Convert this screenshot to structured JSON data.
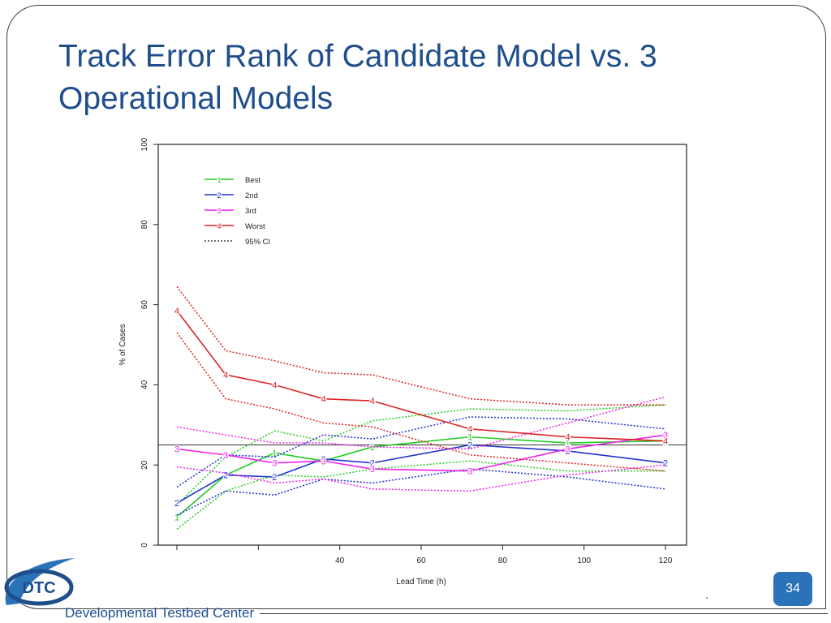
{
  "slide": {
    "title": "Track Error Rank of Candidate Model vs. 3 Operational Models",
    "page_number": "34",
    "org_name": "Developmental Testbed Center",
    "logo_text": "DTC"
  },
  "colors": {
    "best": "#22cc22",
    "second": "#2233cc",
    "third": "#ee22ee",
    "worst": "#dd2222",
    "ci": "#222222",
    "title": "#1f4e8c",
    "badge": "#2b73b8"
  },
  "chart_data": {
    "type": "line",
    "xlabel": "Lead Time (h)",
    "ylabel": "% of Cases",
    "xlim": [
      0,
      120
    ],
    "ylim": [
      0,
      100
    ],
    "x_ticks": [
      40,
      60,
      80,
      100,
      120
    ],
    "y_ticks": [
      0,
      20,
      40,
      60,
      80,
      100
    ],
    "reference_line": 25,
    "legend_position": "top-left",
    "legend": [
      "Best",
      "2nd",
      "3rd",
      "Worst",
      "95% CI"
    ],
    "x": [
      0,
      12,
      24,
      36,
      48,
      72,
      96,
      120
    ],
    "series": [
      {
        "name": "Best",
        "marker": "1",
        "values": [
          7,
          17.5,
          23,
          21,
          24.5,
          27,
          25.5,
          26
        ],
        "ci_low": [
          4,
          13.5,
          17.5,
          17,
          19,
          21,
          18.5,
          18.5
        ],
        "ci_high": [
          10,
          22,
          28.5,
          26,
          31,
          34,
          33.5,
          35
        ]
      },
      {
        "name": "2nd",
        "marker": "2",
        "values": [
          10.5,
          17.5,
          17,
          21.5,
          20.5,
          25,
          23.5,
          20.5
        ],
        "ci_low": [
          7.5,
          13.5,
          12.5,
          16.5,
          15.5,
          19,
          17,
          14
        ],
        "ci_high": [
          14.5,
          22.5,
          22,
          27.5,
          26.5,
          32,
          31.5,
          29
        ]
      },
      {
        "name": "3rd",
        "marker": "3",
        "values": [
          24,
          22.5,
          20.5,
          21,
          19,
          18.5,
          24,
          27.5
        ],
        "ci_low": [
          19.5,
          18,
          15.5,
          16.5,
          14,
          13.5,
          17.5,
          20
        ],
        "ci_high": [
          29.5,
          27.5,
          25.5,
          25.5,
          24.5,
          24,
          30.5,
          37
        ]
      },
      {
        "name": "Worst",
        "marker": "4",
        "values": [
          58.5,
          42.5,
          40,
          36.5,
          36,
          29,
          27,
          26
        ],
        "ci_low": [
          53,
          36.5,
          34,
          30.5,
          29.5,
          22.5,
          20.5,
          18.5
        ],
        "ci_high": [
          64.5,
          48.5,
          46,
          43,
          42.5,
          36.5,
          35,
          35
        ]
      }
    ]
  }
}
